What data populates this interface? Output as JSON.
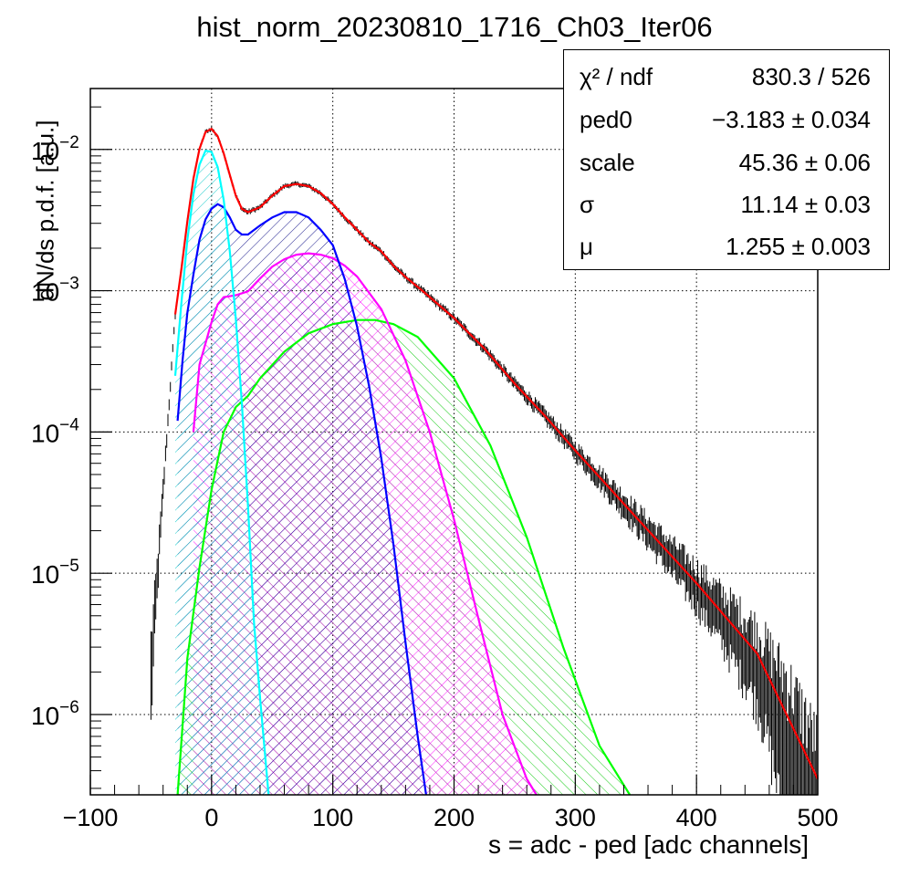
{
  "chart_data": {
    "type": "histogram-fit",
    "title": "hist_norm_20230810_1716_Ch03_Iter06",
    "xlabel": "s = adc - ped [adc channels]",
    "ylabel": "dN/ds p.d.f. [a.u.]",
    "xlim": [
      -100,
      500
    ],
    "ylim": [
      2.7e-07,
      0.027
    ],
    "yscale": "log",
    "grid": true,
    "x_ticks": [
      -100,
      0,
      100,
      200,
      300,
      400,
      500
    ],
    "x_tick_labels": [
      "−100",
      "0",
      "100",
      "200",
      "300",
      "400",
      "500"
    ],
    "y_ticks": [
      {
        "value": 1e-06,
        "base": "10",
        "exp": "−6"
      },
      {
        "value": 1e-05,
        "base": "10",
        "exp": "−5"
      },
      {
        "value": 0.0001,
        "base": "10",
        "exp": "−4"
      },
      {
        "value": 0.001,
        "base": "10",
        "exp": "−3"
      },
      {
        "value": 0.01,
        "base": "10",
        "exp": "−2"
      }
    ],
    "series": [
      {
        "name": "",
        "color": "#ff0000",
        "points": [
          [
            -30,
            0.00068
          ],
          [
            -25,
            0.0014
          ],
          [
            -20,
            0.0031
          ],
          [
            -15,
            0.0062
          ],
          [
            -10,
            0.0101
          ],
          [
            -5,
            0.0133
          ],
          [
            0,
            0.014
          ],
          [
            5,
            0.0124
          ],
          [
            10,
            0.0094
          ],
          [
            15,
            0.0066
          ],
          [
            20,
            0.0047
          ],
          [
            25,
            0.0038
          ],
          [
            30,
            0.0036
          ],
          [
            40,
            0.0039
          ],
          [
            50,
            0.0047
          ],
          [
            60,
            0.0055
          ],
          [
            70,
            0.0057
          ],
          [
            80,
            0.0055
          ],
          [
            90,
            0.0049
          ],
          [
            100,
            0.0041
          ],
          [
            110,
            0.0033
          ],
          [
            120,
            0.0027
          ],
          [
            130,
            0.0022
          ],
          [
            140,
            0.0019
          ],
          [
            150,
            0.0015
          ],
          [
            160,
            0.00125
          ],
          [
            175,
            0.00098
          ],
          [
            200,
            0.00064
          ],
          [
            225,
            0.00039
          ],
          [
            250,
            0.00022
          ],
          [
            275,
            0.00013
          ],
          [
            300,
            7.4e-05
          ],
          [
            350,
            2.5e-05
          ],
          [
            400,
            8.5e-06
          ],
          [
            450,
            2.7e-06
          ],
          [
            500,
            3.5e-07
          ]
        ]
      },
      {
        "name": "",
        "color": "#00ffff",
        "points": [
          [
            -30,
            0.00025
          ],
          [
            -25,
            0.0008
          ],
          [
            -20,
            0.0023
          ],
          [
            -15,
            0.0048
          ],
          [
            -10,
            0.0078
          ],
          [
            -5,
            0.0098
          ],
          [
            0,
            0.0096
          ],
          [
            5,
            0.0075
          ],
          [
            10,
            0.0044
          ],
          [
            15,
            0.0019
          ],
          [
            20,
            0.00063
          ],
          [
            25,
            0.00016
          ],
          [
            30,
            3e-05
          ],
          [
            35,
            4.5e-06
          ],
          [
            40,
            1.3e-06
          ],
          [
            47,
            2.7e-07
          ]
        ]
      },
      {
        "name": "",
        "color": "#0000ff",
        "points": [
          [
            -28,
            0.00012
          ],
          [
            -24,
            0.00032
          ],
          [
            -20,
            0.0007
          ],
          [
            -15,
            0.0013
          ],
          [
            -10,
            0.0023
          ],
          [
            -5,
            0.0032
          ],
          [
            0,
            0.0038
          ],
          [
            5,
            0.0041
          ],
          [
            10,
            0.0039
          ],
          [
            15,
            0.0033
          ],
          [
            20,
            0.0027
          ],
          [
            25,
            0.0025
          ],
          [
            30,
            0.0025
          ],
          [
            40,
            0.0029
          ],
          [
            50,
            0.0033
          ],
          [
            60,
            0.0036
          ],
          [
            70,
            0.0036
          ],
          [
            80,
            0.0033
          ],
          [
            90,
            0.0027
          ],
          [
            100,
            0.0021
          ],
          [
            110,
            0.0012
          ],
          [
            120,
            0.00056
          ],
          [
            130,
            0.00021
          ],
          [
            140,
            6.5e-05
          ],
          [
            150,
            1.6e-05
          ],
          [
            160,
            3.2e-06
          ],
          [
            170,
            7e-07
          ],
          [
            177,
            2.7e-07
          ]
        ]
      },
      {
        "name": "",
        "color": "#ff00ff",
        "points": [
          [
            -15,
            0.0001
          ],
          [
            -10,
            0.0003
          ],
          [
            0,
            0.0006
          ],
          [
            5,
            0.0008
          ],
          [
            10,
            0.0009
          ],
          [
            20,
            0.00093
          ],
          [
            30,
            0.00099
          ],
          [
            40,
            0.00122
          ],
          [
            50,
            0.00148
          ],
          [
            60,
            0.00167
          ],
          [
            70,
            0.0018
          ],
          [
            80,
            0.00184
          ],
          [
            90,
            0.0018
          ],
          [
            100,
            0.0017
          ],
          [
            110,
            0.0015
          ],
          [
            120,
            0.00126
          ],
          [
            140,
            0.00074
          ],
          [
            160,
            0.00032
          ],
          [
            180,
            0.0001
          ],
          [
            200,
            2.4e-05
          ],
          [
            220,
            4.8e-06
          ],
          [
            240,
            1e-06
          ],
          [
            260,
            3.5e-07
          ],
          [
            268,
            2.7e-07
          ]
        ]
      },
      {
        "name": "",
        "color": "#00ff00",
        "points": [
          [
            -28,
            2.7e-07
          ],
          [
            -20,
            2.5e-06
          ],
          [
            -10,
            1.1e-05
          ],
          [
            0,
            3.9e-05
          ],
          [
            10,
            0.0001
          ],
          [
            20,
            0.00015
          ],
          [
            30,
            0.00018
          ],
          [
            40,
            0.00024
          ],
          [
            60,
            0.00037
          ],
          [
            80,
            0.0005
          ],
          [
            100,
            0.00058
          ],
          [
            120,
            0.00062
          ],
          [
            135,
            0.00062
          ],
          [
            150,
            0.00058
          ],
          [
            170,
            0.00047
          ],
          [
            200,
            0.00024
          ],
          [
            230,
            8e-05
          ],
          [
            260,
            1.8e-05
          ],
          [
            290,
            3e-06
          ],
          [
            320,
            6e-07
          ],
          [
            345,
            2.7e-07
          ]
        ]
      }
    ],
    "data_histogram": {
      "name": "",
      "color": "#000000",
      "x_range": [
        -50,
        500
      ]
    }
  },
  "stats": [
    {
      "name": "χ² / ndf",
      "value": "830.3 / 526"
    },
    {
      "name": "ped0",
      "value": "−3.183 ± 0.034"
    },
    {
      "name": "scale",
      "value": "45.36 ± 0.06"
    },
    {
      "name": "σ",
      "value": "11.14 ± 0.03"
    },
    {
      "name": "μ",
      "value": "1.255 ± 0.003"
    }
  ]
}
